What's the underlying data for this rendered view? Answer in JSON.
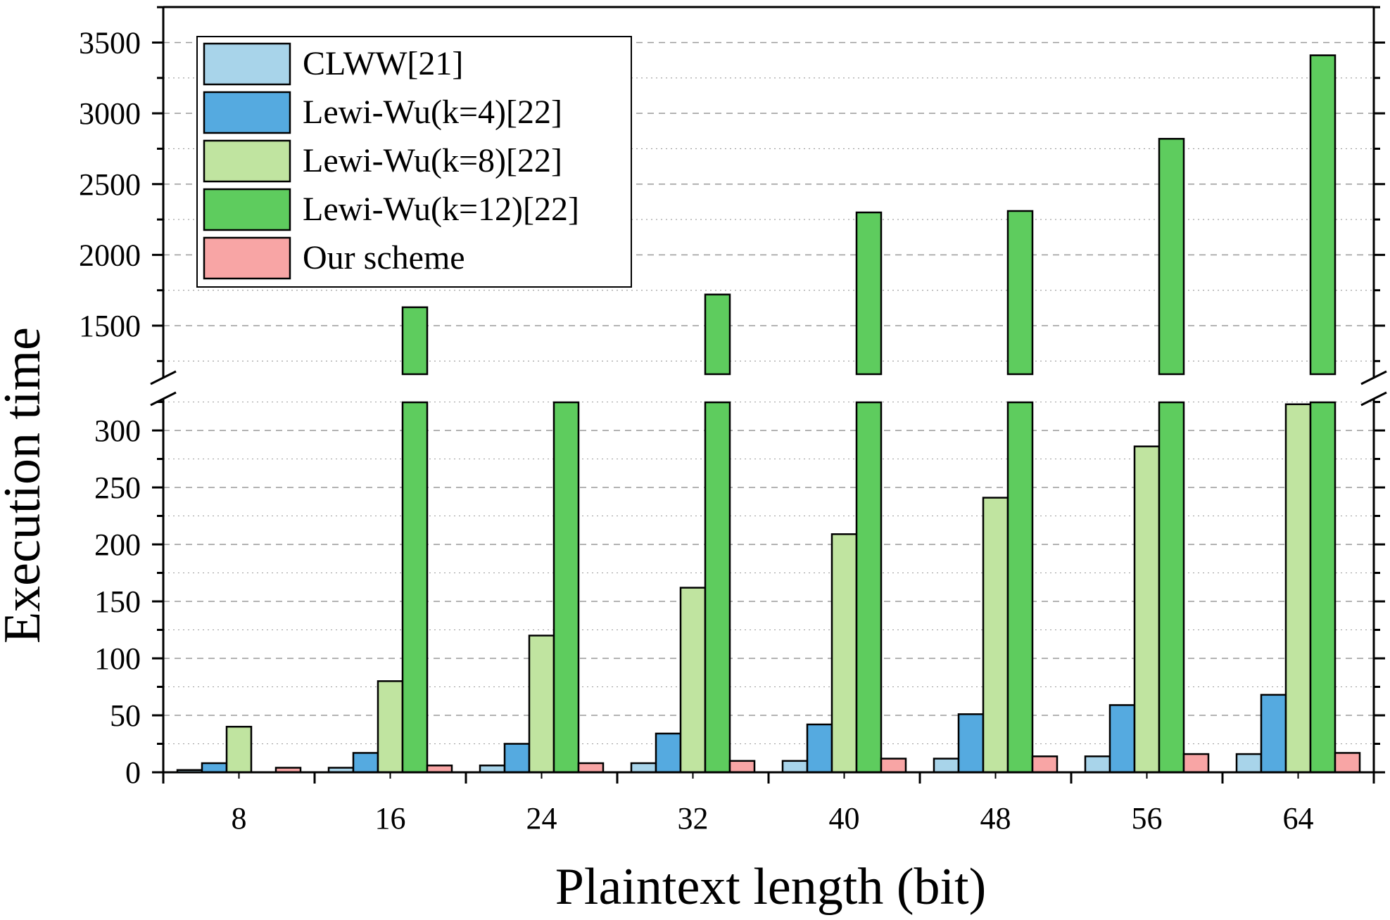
{
  "chart_data": {
    "type": "bar",
    "xlabel": "Plaintext length (bit)",
    "ylabel": "Execution time",
    "categories": [
      "8",
      "16",
      "24",
      "32",
      "40",
      "48",
      "56",
      "64"
    ],
    "y_axis_break": {
      "lower_range": [
        0,
        325
      ],
      "upper_range": [
        1100,
        3750
      ]
    },
    "lower_ticks": [
      "0",
      "50",
      "100",
      "150",
      "200",
      "250",
      "300"
    ],
    "upper_ticks": [
      "1500",
      "2000",
      "2500",
      "3000",
      "3500"
    ],
    "grid": true,
    "legend_position": "top-left",
    "series": [
      {
        "name": "CLWW[21]",
        "color": "#a8d4ea",
        "values": [
          2,
          4,
          6,
          8,
          10,
          12,
          14,
          16
        ]
      },
      {
        "name": "Lewi-Wu(k=4)[22]",
        "color": "#55aae0",
        "values": [
          8,
          17,
          25,
          34,
          42,
          51,
          59,
          68
        ]
      },
      {
        "name": "Lewi-Wu(k=8)[22]",
        "color": "#c0e4a0",
        "values": [
          40,
          80,
          120,
          162,
          209,
          241,
          286,
          323
        ]
      },
      {
        "name": "Lewi-Wu(k=12)[22]",
        "color": "#5ecc5e",
        "values": [
          0,
          1630,
          1150,
          1720,
          2300,
          2310,
          2820,
          3410
        ]
      },
      {
        "name": "Our scheme",
        "color": "#f8a5a5",
        "values": [
          4,
          6,
          8,
          10,
          12,
          14,
          16,
          17
        ]
      }
    ]
  }
}
